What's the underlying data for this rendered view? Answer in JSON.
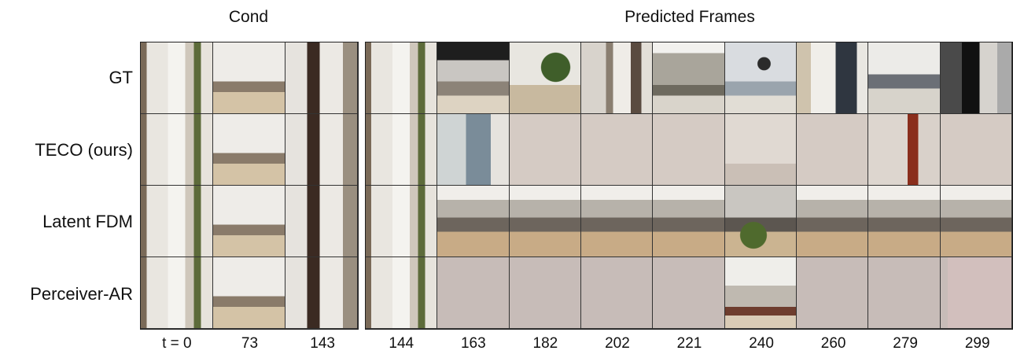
{
  "headers": {
    "cond": "Cond",
    "predicted": "Predicted Frames"
  },
  "rows": [
    "GT",
    "TECO (ours)",
    "Latent FDM",
    "Perceiver-AR"
  ],
  "time_labels": {
    "cond": [
      "t = 0",
      "73",
      "143"
    ],
    "predicted": [
      "144",
      "163",
      "182",
      "202",
      "221",
      "240",
      "260",
      "279",
      "299"
    ]
  },
  "colors": {
    "background": "#ffffff",
    "blank_gray": "#c8bdb8",
    "blank_taupe": "#d2c2bd",
    "wall": "#e6e2dc",
    "floor": "#d8b98c",
    "dark": "#2a2a2a"
  },
  "frames": {
    "cond": [
      [
        "hallway",
        "living",
        "door"
      ],
      [
        "hallway",
        "living",
        "door"
      ],
      [
        "hallway",
        "living",
        "door"
      ],
      [
        "hallway",
        "living",
        "door"
      ]
    ],
    "predicted": [
      [
        "hallway",
        "kitchen",
        "plant",
        "corridor",
        "window",
        "bathroom",
        "art",
        "office",
        "dark-room"
      ],
      [
        "hallway",
        "blurred-art",
        "blank",
        "blank",
        "blank",
        "wall",
        "blank",
        "red-streak",
        "blank"
      ],
      [
        "hallway",
        "noisy",
        "noisy",
        "noisy",
        "noisy",
        "noisy-plant",
        "noisy",
        "noisy",
        "noisy"
      ],
      [
        "hallway",
        "gray",
        "gray",
        "gray",
        "gray",
        "room-photo",
        "gray",
        "gray",
        "pink-gray"
      ]
    ]
  }
}
